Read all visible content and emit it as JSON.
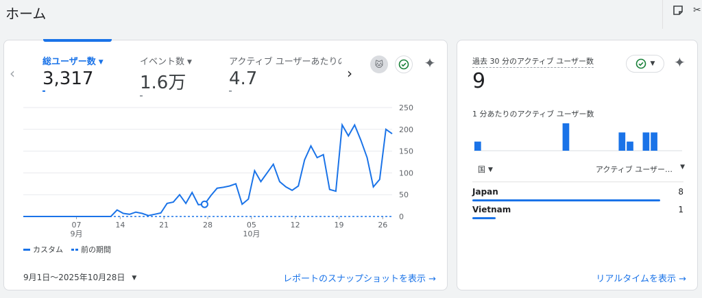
{
  "page": {
    "title": "ホーム"
  },
  "main_card": {
    "metrics": [
      {
        "label": "総ユーザー数",
        "value": "3,317",
        "active": true
      },
      {
        "label": "イベント数",
        "value": "1.6万",
        "active": false
      },
      {
        "label": "アクティブ ユーザーあたりの",
        "value": "4.7",
        "active": false
      }
    ],
    "legend": {
      "current": "カスタム",
      "previous": "前の期間"
    },
    "date_range": "9月1日～2025年10月28日",
    "snapshot_link": "レポートのスナップショットを表示 →"
  },
  "chart_data": {
    "type": "line",
    "x_tick_labels": [
      "07",
      "14",
      "21",
      "28",
      "05",
      "12",
      "19",
      "26"
    ],
    "x_month_labels": [
      {
        "label": "9月",
        "at": "07"
      },
      {
        "label": "10月",
        "at": "05"
      }
    ],
    "ylim": [
      0,
      250
    ],
    "y_ticks": [
      "0",
      "50",
      "100",
      "150",
      "200",
      "250"
    ],
    "series": [
      {
        "name": "カスタム",
        "style": "solid",
        "color": "#1a73e8",
        "values": [
          0,
          0,
          0,
          0,
          0,
          0,
          0,
          0,
          0,
          0,
          0,
          0,
          0,
          0,
          0,
          15,
          7,
          5,
          10,
          7,
          2,
          5,
          8,
          30,
          33,
          50,
          30,
          55,
          27,
          28,
          48,
          65,
          67,
          70,
          75,
          28,
          40,
          105,
          80,
          100,
          120,
          80,
          68,
          60,
          70,
          130,
          162,
          135,
          142,
          62,
          58,
          210,
          185,
          210,
          175,
          135,
          68,
          85,
          200,
          190
        ],
        "marker_index": 29
      },
      {
        "name": "前の期間",
        "style": "dashed",
        "color": "#1a73e8",
        "values": [
          0,
          0,
          0,
          0,
          0,
          0,
          0,
          0,
          0,
          0,
          0,
          0,
          0,
          0,
          0,
          0,
          0,
          0,
          0,
          0,
          0,
          0,
          0,
          0,
          0,
          0,
          0,
          0,
          0,
          0,
          0,
          0,
          0,
          0,
          0,
          0,
          0,
          0,
          0,
          0,
          0,
          0,
          0,
          0,
          0,
          0,
          0,
          0,
          0,
          0,
          0,
          0,
          0,
          0,
          0,
          0,
          0,
          0,
          0,
          0
        ]
      }
    ]
  },
  "realtime_card": {
    "title": "過去 30 分のアクティブ ユーザー数",
    "value": "9",
    "subtitle": "1 分あたりのアクティブ ユーザー数",
    "per_minute": [
      1,
      0,
      0,
      0,
      0,
      0,
      0,
      0,
      0,
      0,
      0,
      3,
      0,
      0,
      0,
      0,
      0,
      0,
      2,
      1,
      0,
      2,
      2,
      0,
      0,
      0
    ],
    "table_header": {
      "country": "国",
      "users": "アクティブ ユーザー…"
    },
    "rows": [
      {
        "country": "Japan",
        "count": "8",
        "share": 0.89
      },
      {
        "country": "Vietnam",
        "count": "1",
        "share": 0.11
      }
    ],
    "link": "リアルタイムを表示 →"
  }
}
